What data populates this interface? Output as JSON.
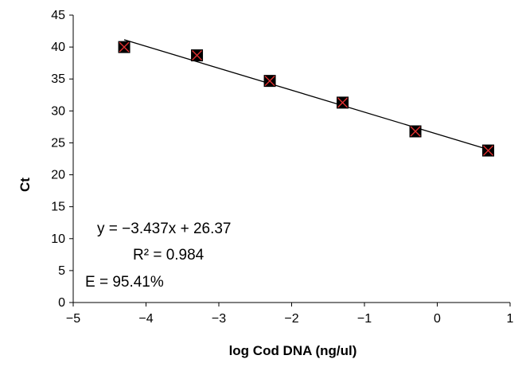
{
  "chart_data": {
    "type": "scatter",
    "xlabel": "log Cod DNA (ng/ul)",
    "ylabel": "Ct",
    "xlim": [
      -5,
      1
    ],
    "ylim": [
      0,
      45
    ],
    "x_ticks": [
      -5,
      -4,
      -3,
      -2,
      -1,
      0,
      1
    ],
    "y_ticks": [
      0,
      5,
      10,
      15,
      20,
      25,
      30,
      35,
      40,
      45
    ],
    "x_tick_labels": [
      "−5",
      "−4",
      "−3",
      "−2",
      "−1",
      "0",
      "1"
    ],
    "y_tick_labels": [
      "0",
      "5",
      "10",
      "15",
      "20",
      "25",
      "30",
      "35",
      "40",
      "45"
    ],
    "grid": false,
    "series": [
      {
        "marker": "square-x",
        "marker_fill": "#000000",
        "marker_cross_color": "#e03030",
        "x": [
          -4.3,
          -3.3,
          -2.3,
          -1.3,
          -0.3,
          0.7
        ],
        "y": [
          40.0,
          38.7,
          34.7,
          31.3,
          26.8,
          23.8
        ]
      }
    ],
    "trendline": {
      "type": "linear",
      "slope": -3.437,
      "intercept": 26.37,
      "x_range": [
        -4.3,
        0.7
      ],
      "color": "#000000"
    },
    "annotations": {
      "equation": "y = −3.437x + 26.37",
      "r_squared": "R² = 0.984",
      "efficiency": "E = 95.41%"
    }
  }
}
